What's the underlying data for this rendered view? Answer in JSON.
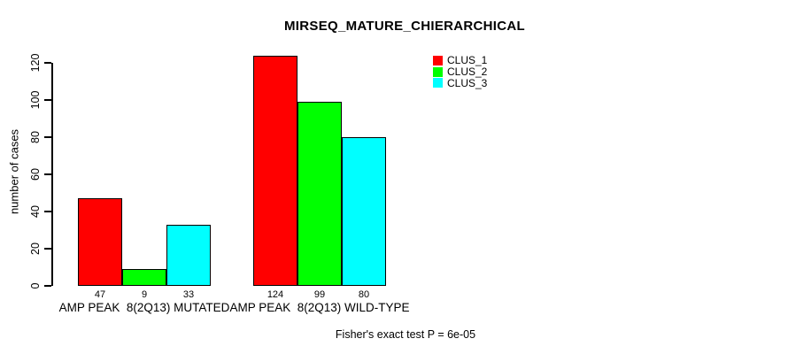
{
  "chart_data": {
    "type": "bar",
    "title": "MIRSEQ_MATURE_CHIERARCHICAL",
    "ylabel": "number of cases",
    "xlabel": "",
    "ylim": [
      0,
      120
    ],
    "yticks": [
      0,
      20,
      40,
      60,
      80,
      100,
      120
    ],
    "grid": false,
    "legend_position": "top-right",
    "categories": [
      "AMP PEAK  8(2Q13) MUTATED",
      "AMP PEAK  8(2Q13) WILD-TYPE"
    ],
    "series": [
      {
        "name": "CLUS_1",
        "color": "#ff0000",
        "values": [
          47,
          124
        ]
      },
      {
        "name": "CLUS_2",
        "color": "#00ff00",
        "values": [
          9,
          99
        ]
      },
      {
        "name": "CLUS_3",
        "color": "#00ffff",
        "values": [
          33,
          80
        ]
      }
    ],
    "show_value_labels": true,
    "footnote": "Fisher's exact test P = 6e-05"
  }
}
